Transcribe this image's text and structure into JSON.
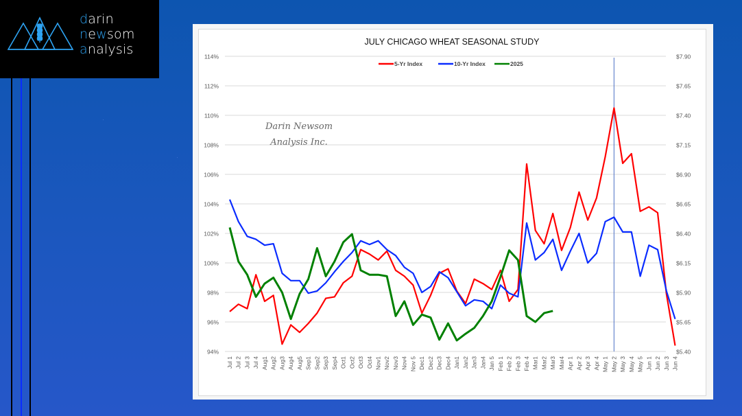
{
  "brand": {
    "line1_accent": "d",
    "line1_rest": "arin",
    "line2_accent": "n",
    "line2_mid": "e",
    "line2_accent2": "w",
    "line2_rest": "som",
    "line3_accent": "a",
    "line3_rest": "nalysis",
    "logo_icon": "mountain-wheat-icon",
    "accent_color": "#2ea3f2"
  },
  "chart_data": {
    "type": "line",
    "title": "JULY CHICAGO WHEAT SEASONAL STUDY",
    "watermark": [
      "Darin Newsom",
      "Analysis Inc."
    ],
    "xlabel": "",
    "ylabel": "",
    "ylim": [
      94,
      114
    ],
    "y_ticks": [
      "114%",
      "112%",
      "110%",
      "108%",
      "106%",
      "104%",
      "102%",
      "100%",
      "98%",
      "96%",
      "94%"
    ],
    "y2lim": [
      5.4,
      7.9
    ],
    "y2_ticks": [
      "$7.90",
      "$7.65",
      "$7.40",
      "$7.15",
      "$6.90",
      "$6.65",
      "$6.40",
      "$6.15",
      "$5.90",
      "$5.65",
      "$5.40"
    ],
    "grid": true,
    "legend_position": "top-center",
    "marker_line_category": "May 2",
    "categories": [
      "Jul 1",
      "Jul 2",
      "Jul 3",
      "Jul 4",
      "Aug1",
      "Aug2",
      "Aug3",
      "Aug4",
      "Aug5",
      "Sep1",
      "Sep2",
      "Sep3",
      "Sep4",
      "Oct1",
      "Oct2",
      "Oct3",
      "Oct4",
      "Nov1",
      "Nov2",
      "Nov3",
      "Nov4",
      "Nov 5",
      "Dec1",
      "Dec2",
      "Dec3",
      "Dec4",
      "Jan1",
      "Jan2",
      "Jan3",
      "Jan4",
      "Jan 5",
      "Feb 1",
      "Feb 2",
      "Feb 3",
      "Feb 4",
      "Mar1",
      "Mar2",
      "Mar3",
      "Mar4",
      "Apr 1",
      "Apr 2",
      "Apr 3",
      "Apr 4",
      "May 1",
      "May 2",
      "May 3",
      "May 4",
      "May 5",
      "Jun 1",
      "Jun 2",
      "Jun 3",
      "Jun 4"
    ],
    "series": [
      {
        "name": "5-Yr Index",
        "color": "#ff0000",
        "values": [
          96.7,
          97.2,
          96.9,
          99.2,
          97.4,
          97.8,
          94.5,
          95.8,
          95.3,
          95.9,
          96.6,
          97.6,
          97.7,
          98.65,
          99.1,
          100.9,
          100.6,
          100.2,
          100.8,
          99.5,
          99.1,
          98.5,
          96.6,
          97.8,
          99.3,
          99.6,
          98.1,
          97.25,
          98.9,
          98.6,
          98.2,
          99.5,
          97.4,
          98.2,
          106.7,
          102.2,
          101.3,
          103.35,
          100.85,
          102.4,
          104.8,
          102.9,
          104.4,
          107.2,
          110.5,
          106.75,
          107.4,
          103.5,
          103.8,
          103.4,
          97.9,
          94.4
        ]
      },
      {
        "name": "10-Yr Index",
        "color": "#0a2cff",
        "values": [
          104.3,
          102.8,
          101.8,
          101.6,
          101.2,
          101.3,
          99.3,
          98.8,
          98.8,
          97.95,
          98.1,
          98.65,
          99.4,
          100.1,
          100.7,
          101.5,
          101.25,
          101.5,
          100.9,
          100.5,
          99.7,
          99.3,
          98.0,
          98.4,
          99.4,
          99.0,
          98.05,
          97.1,
          97.5,
          97.4,
          96.9,
          98.5,
          97.95,
          97.7,
          102.7,
          100.2,
          100.7,
          101.6,
          99.5,
          100.8,
          102.0,
          100.0,
          100.65,
          102.8,
          103.1,
          102.1,
          102.1,
          99.1,
          101.2,
          100.9,
          98.1,
          96.2
        ]
      },
      {
        "name": "2025",
        "color": "#008000",
        "values": [
          102.4,
          100.1,
          99.2,
          97.7,
          98.6,
          99.0,
          98.0,
          96.2,
          97.9,
          98.9,
          101.0,
          99.1,
          100.1,
          101.4,
          101.95,
          99.5,
          99.2,
          99.2,
          99.1,
          96.4,
          97.4,
          95.8,
          96.5,
          96.3,
          94.8,
          95.9,
          94.75,
          95.2,
          95.6,
          96.4,
          97.4,
          99.05,
          100.85,
          100.2,
          96.4,
          96.0,
          96.6,
          96.75,
          null,
          null,
          null,
          null,
          null,
          null,
          null,
          null,
          null,
          null,
          null,
          null,
          null,
          null
        ]
      }
    ]
  }
}
